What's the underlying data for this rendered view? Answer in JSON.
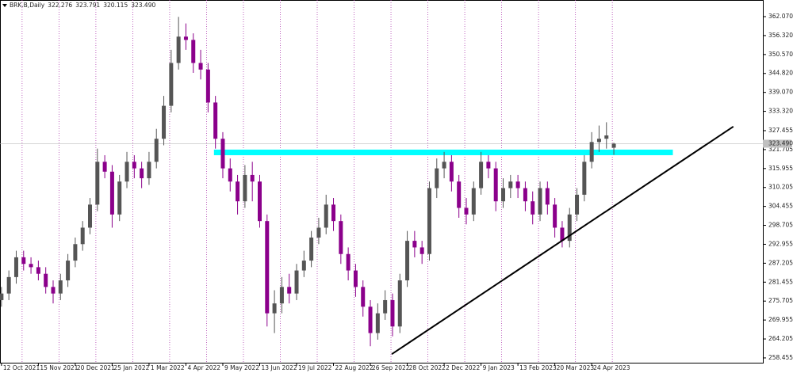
{
  "chart_data": {
    "type": "candlestick",
    "header": {
      "symbol": "BRK.B,Daily",
      "quote": [
        322.276,
        323.791,
        320.115,
        {
          "value": 323.49,
          "label": "323.490"
        }
      ]
    },
    "last_price": {
      "value": 323.49,
      "label": "323.490"
    },
    "categories": [
      "12 Oct 2021",
      null,
      null,
      null,
      null,
      "15 Nov 2021",
      null,
      null,
      null,
      null,
      "20 Dec 2021",
      null,
      null,
      null,
      null,
      "25 Jan 2022",
      null,
      null,
      null,
      null,
      "1 Mar 2022",
      null,
      null,
      null,
      null,
      "4 Apr 2022",
      null,
      null,
      null,
      null,
      "9 May 2022",
      null,
      null,
      null,
      null,
      "13 Jun 2022",
      null,
      null,
      null,
      null,
      "19 Jul 2022",
      null,
      null,
      null,
      null,
      "22 Aug 2022",
      null,
      null,
      null,
      null,
      "26 Sep 2022",
      null,
      null,
      null,
      null,
      "28 Oct 2022",
      null,
      null,
      null,
      null,
      "2 Dec 2022",
      null,
      null,
      null,
      null,
      "9 Jan 2023",
      null,
      null,
      null,
      null,
      "13 Feb 2023",
      null,
      null,
      null,
      null,
      "20 Mar 2023",
      null,
      null,
      null,
      null,
      "24 Apr 2023",
      null,
      null,
      null
    ],
    "open": [
      276,
      278,
      283,
      289,
      287,
      286,
      284,
      280,
      278,
      282,
      288,
      293,
      298,
      305,
      318,
      315,
      302,
      312,
      318,
      316,
      313,
      318,
      325,
      335,
      348,
      356,
      355,
      348,
      346,
      336,
      325,
      316,
      312,
      306,
      314,
      312,
      300,
      272,
      275,
      280,
      278,
      285,
      288,
      295,
      298,
      305,
      300,
      290,
      285,
      280,
      274,
      266,
      272,
      276,
      268,
      282,
      294,
      292,
      290,
      310,
      316,
      318,
      312,
      304,
      302,
      310,
      318,
      316,
      306,
      310,
      312,
      310,
      306,
      302,
      310,
      305,
      298,
      294,
      302,
      308,
      318,
      324,
      325,
      322.276
    ],
    "high": [
      280,
      285,
      291,
      291,
      289,
      288,
      286,
      282,
      284,
      290,
      295,
      300,
      307,
      322,
      320,
      317,
      314,
      321,
      320,
      318,
      321,
      328,
      338,
      352,
      362,
      360,
      357,
      352,
      348,
      338,
      327,
      319,
      314,
      317,
      318,
      314,
      302,
      279,
      283,
      284,
      287,
      291,
      297,
      301,
      308,
      307,
      302,
      292,
      287,
      282,
      276,
      275,
      279,
      278,
      284,
      297,
      297,
      294,
      312,
      319,
      321,
      320,
      314,
      307,
      312,
      321,
      320,
      318,
      313,
      314,
      314,
      312,
      309,
      312,
      312,
      307,
      300,
      304,
      310,
      320,
      327,
      329,
      330,
      323.791
    ],
    "low": [
      274,
      276,
      281,
      285,
      284,
      282,
      278,
      275,
      276,
      280,
      286,
      291,
      296,
      303,
      313,
      298,
      300,
      310,
      313,
      310,
      311,
      316,
      323,
      333,
      346,
      352,
      345,
      343,
      333,
      322,
      313,
      309,
      302,
      304,
      306,
      298,
      268,
      266,
      272,
      275,
      276,
      283,
      286,
      293,
      296,
      297,
      287,
      282,
      277,
      271,
      262,
      264,
      270,
      265,
      266,
      280,
      289,
      287,
      288,
      307,
      313,
      309,
      301,
      299,
      300,
      308,
      313,
      303,
      304,
      307,
      307,
      303,
      299,
      300,
      302,
      295,
      292,
      292,
      300,
      306,
      316,
      321,
      322,
      320.115
    ],
    "close": [
      278,
      283,
      289,
      287,
      286,
      284,
      280,
      278,
      282,
      288,
      293,
      298,
      305,
      318,
      315,
      302,
      312,
      318,
      316,
      313,
      318,
      325,
      335,
      348,
      356,
      355,
      348,
      346,
      336,
      325,
      316,
      312,
      306,
      314,
      312,
      300,
      272,
      275,
      280,
      278,
      285,
      288,
      295,
      298,
      305,
      300,
      290,
      285,
      280,
      274,
      266,
      272,
      276,
      268,
      282,
      294,
      292,
      290,
      310,
      316,
      318,
      312,
      304,
      302,
      310,
      318,
      316,
      306,
      310,
      312,
      310,
      306,
      302,
      310,
      305,
      298,
      294,
      302,
      308,
      318,
      324,
      325,
      326,
      323.49
    ],
    "up_color": "#555555",
    "down_color": "#8b008b",
    "xlim": [
      -0.2,
      103.2
    ],
    "ylim": [
      257.0,
      367.12
    ],
    "yticks": [
      {
        "value": 362.07,
        "label": "362.070"
      },
      {
        "value": 356.32,
        "label": "356.320"
      },
      {
        "value": 350.57,
        "label": "350.570"
      },
      {
        "value": 344.82,
        "label": "344.820"
      },
      {
        "value": 339.07,
        "label": "339.070"
      },
      {
        "value": 333.32,
        "label": "333.320"
      },
      327.455,
      321.705,
      315.955,
      310.205,
      304.455,
      298.705,
      292.955,
      287.205,
      281.455,
      275.705,
      269.955,
      264.205,
      258.455
    ],
    "grid": true,
    "grid_color": "#b040b0",
    "zone": {
      "x": [
        28.8,
        91
      ],
      "y": [
        320.0,
        321.7
      ],
      "color": "#00ffff"
    },
    "trendline": {
      "x": [
        52.9,
        99.2
      ],
      "y": [
        259.6,
        328.7
      ],
      "color": "#000000"
    }
  }
}
